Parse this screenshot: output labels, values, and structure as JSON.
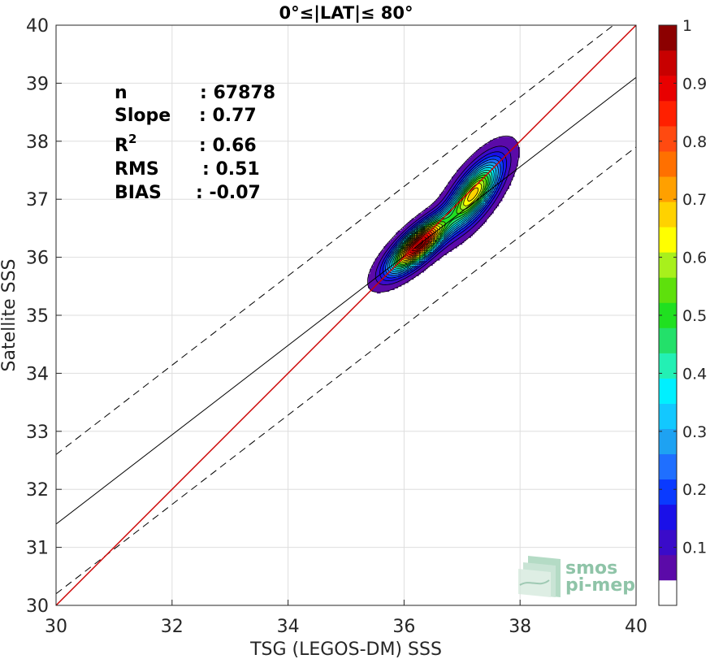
{
  "chart_data": {
    "type": "heatmap",
    "title": "0°≤|LAT|≤ 80°",
    "xlabel": "TSG (LEGOS-DM) SSS",
    "ylabel": "Satellite SSS",
    "xlim": [
      30,
      40
    ],
    "ylim": [
      30,
      40
    ],
    "xticks": [
      "30",
      "32",
      "34",
      "36",
      "38",
      "40"
    ],
    "yticks": [
      "30",
      "31",
      "32",
      "33",
      "34",
      "35",
      "36",
      "37",
      "38",
      "39",
      "40"
    ],
    "grid": true,
    "stats": [
      {
        "label": "n",
        "value": ": 67878"
      },
      {
        "label": "Slope",
        "value": ": 0.77"
      },
      {
        "label": "R",
        "sup": "2",
        "value": ": 0.66"
      },
      {
        "label": "RMS",
        "value": ": 0.51"
      },
      {
        "label": "BIAS",
        "value": ": -0.07"
      }
    ],
    "reference_lines": {
      "identity": {
        "slope": 1.0,
        "intercept": 0.0,
        "color": "#cc0000"
      },
      "fit": {
        "slope": 0.77,
        "intercept": 8.3,
        "color": "#000000"
      },
      "fit_upper": {
        "slope": 0.77,
        "intercept": 9.5,
        "color": "#000000",
        "style": "dashed"
      },
      "fit_lower": {
        "slope": 0.77,
        "intercept": 7.1,
        "color": "#000000",
        "style": "dashed"
      }
    },
    "density_peaks": [
      {
        "x": 36.25,
        "y": 36.22,
        "value": 1.0
      },
      {
        "x": 37.2,
        "y": 37.1,
        "value": 0.68
      }
    ],
    "colorbar": {
      "min": 0,
      "max": 1,
      "ticks": [
        "0.1",
        "0.2",
        "0.3",
        "0.4",
        "0.5",
        "0.6",
        "0.7",
        "0.8",
        "0.9",
        "1"
      ],
      "colors": [
        "#ffffff",
        "#5b0aa8",
        "#3a0bc9",
        "#1a10e8",
        "#0a3aff",
        "#1f6fff",
        "#1ea2f2",
        "#13c8ff",
        "#00f0ff",
        "#23f0b4",
        "#23e06a",
        "#20e020",
        "#5ee00c",
        "#a8f01c",
        "#ffff00",
        "#ffd200",
        "#ffa000",
        "#ff7000",
        "#ff4a10",
        "#ff2000",
        "#e80000",
        "#c80000",
        "#8c0000"
      ]
    }
  },
  "logo": {
    "line1": "smos",
    "line2": "pi-mep"
  }
}
